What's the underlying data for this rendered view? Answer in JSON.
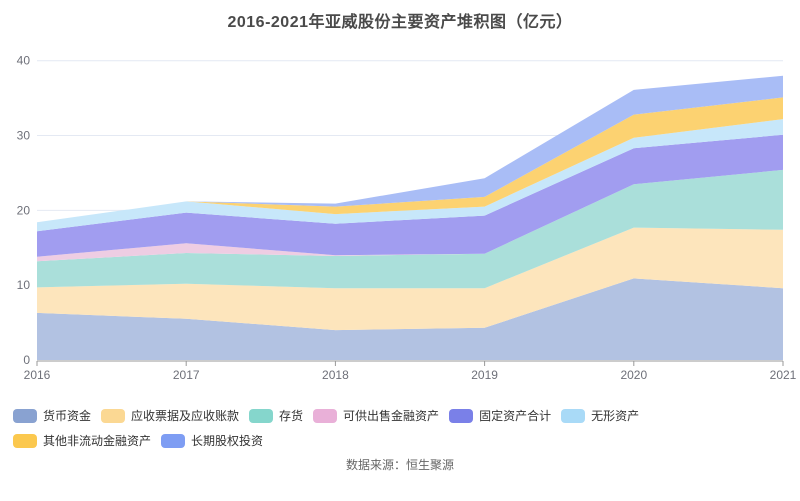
{
  "title": "2016-2021年亚威股份主要资产堆积图（亿元）",
  "footer": {
    "source": "数据来源：恒生聚源"
  },
  "axis_colors": {
    "grid": "#e4e9f3",
    "axis_line": "#999999",
    "tick_label": "#6e7079"
  },
  "chart_data": {
    "type": "area",
    "stacked": true,
    "title": "2016-2021年亚威股份主要资产堆积图（亿元）",
    "categories": [
      "2016",
      "2017",
      "2018",
      "2019",
      "2020",
      "2021"
    ],
    "series": [
      {
        "name": "货币资金",
        "color": "#89a2d1",
        "area_color": "#b2c2e2",
        "values": [
          6.3,
          5.5,
          4.0,
          4.3,
          10.9,
          9.6
        ]
      },
      {
        "name": "应收票据及应收账款",
        "color": "#fbd893",
        "area_color": "#fde5bc",
        "values": [
          3.4,
          4.7,
          5.6,
          5.3,
          6.8,
          7.8
        ]
      },
      {
        "name": "存货",
        "color": "#85d6cc",
        "area_color": "#aadfda",
        "values": [
          3.5,
          4.1,
          4.3,
          4.6,
          5.8,
          8.0
        ]
      },
      {
        "name": "可供出售金融资产",
        "color": "#e9b0d8",
        "area_color": "#eecde3",
        "values": [
          0.6,
          1.3,
          0.1,
          0,
          0,
          0
        ]
      },
      {
        "name": "固定资产合计",
        "color": "#7a80e8",
        "area_color": "#a19df0",
        "values": [
          3.4,
          4.1,
          4.2,
          5.1,
          4.8,
          4.7
        ]
      },
      {
        "name": "无形资产",
        "color": "#a9daf7",
        "area_color": "#c7e7fa",
        "values": [
          1.2,
          1.5,
          1.3,
          1.2,
          1.4,
          2.1
        ]
      },
      {
        "name": "其他非流动金融资产",
        "color": "#fbc84e",
        "area_color": "#fcd271",
        "values": [
          0,
          0,
          1.0,
          1.3,
          3.1,
          2.9
        ]
      },
      {
        "name": "长期股权投资",
        "color": "#7e9df3",
        "area_color": "#a9bdf6",
        "values": [
          0,
          0,
          0.4,
          2.5,
          3.3,
          2.9
        ]
      }
    ],
    "xlabel": "",
    "ylabel": "",
    "ylim": [
      0,
      40
    ],
    "yticks": [
      0,
      10,
      20,
      30,
      40
    ],
    "grid": true,
    "legend_position": "bottom"
  }
}
